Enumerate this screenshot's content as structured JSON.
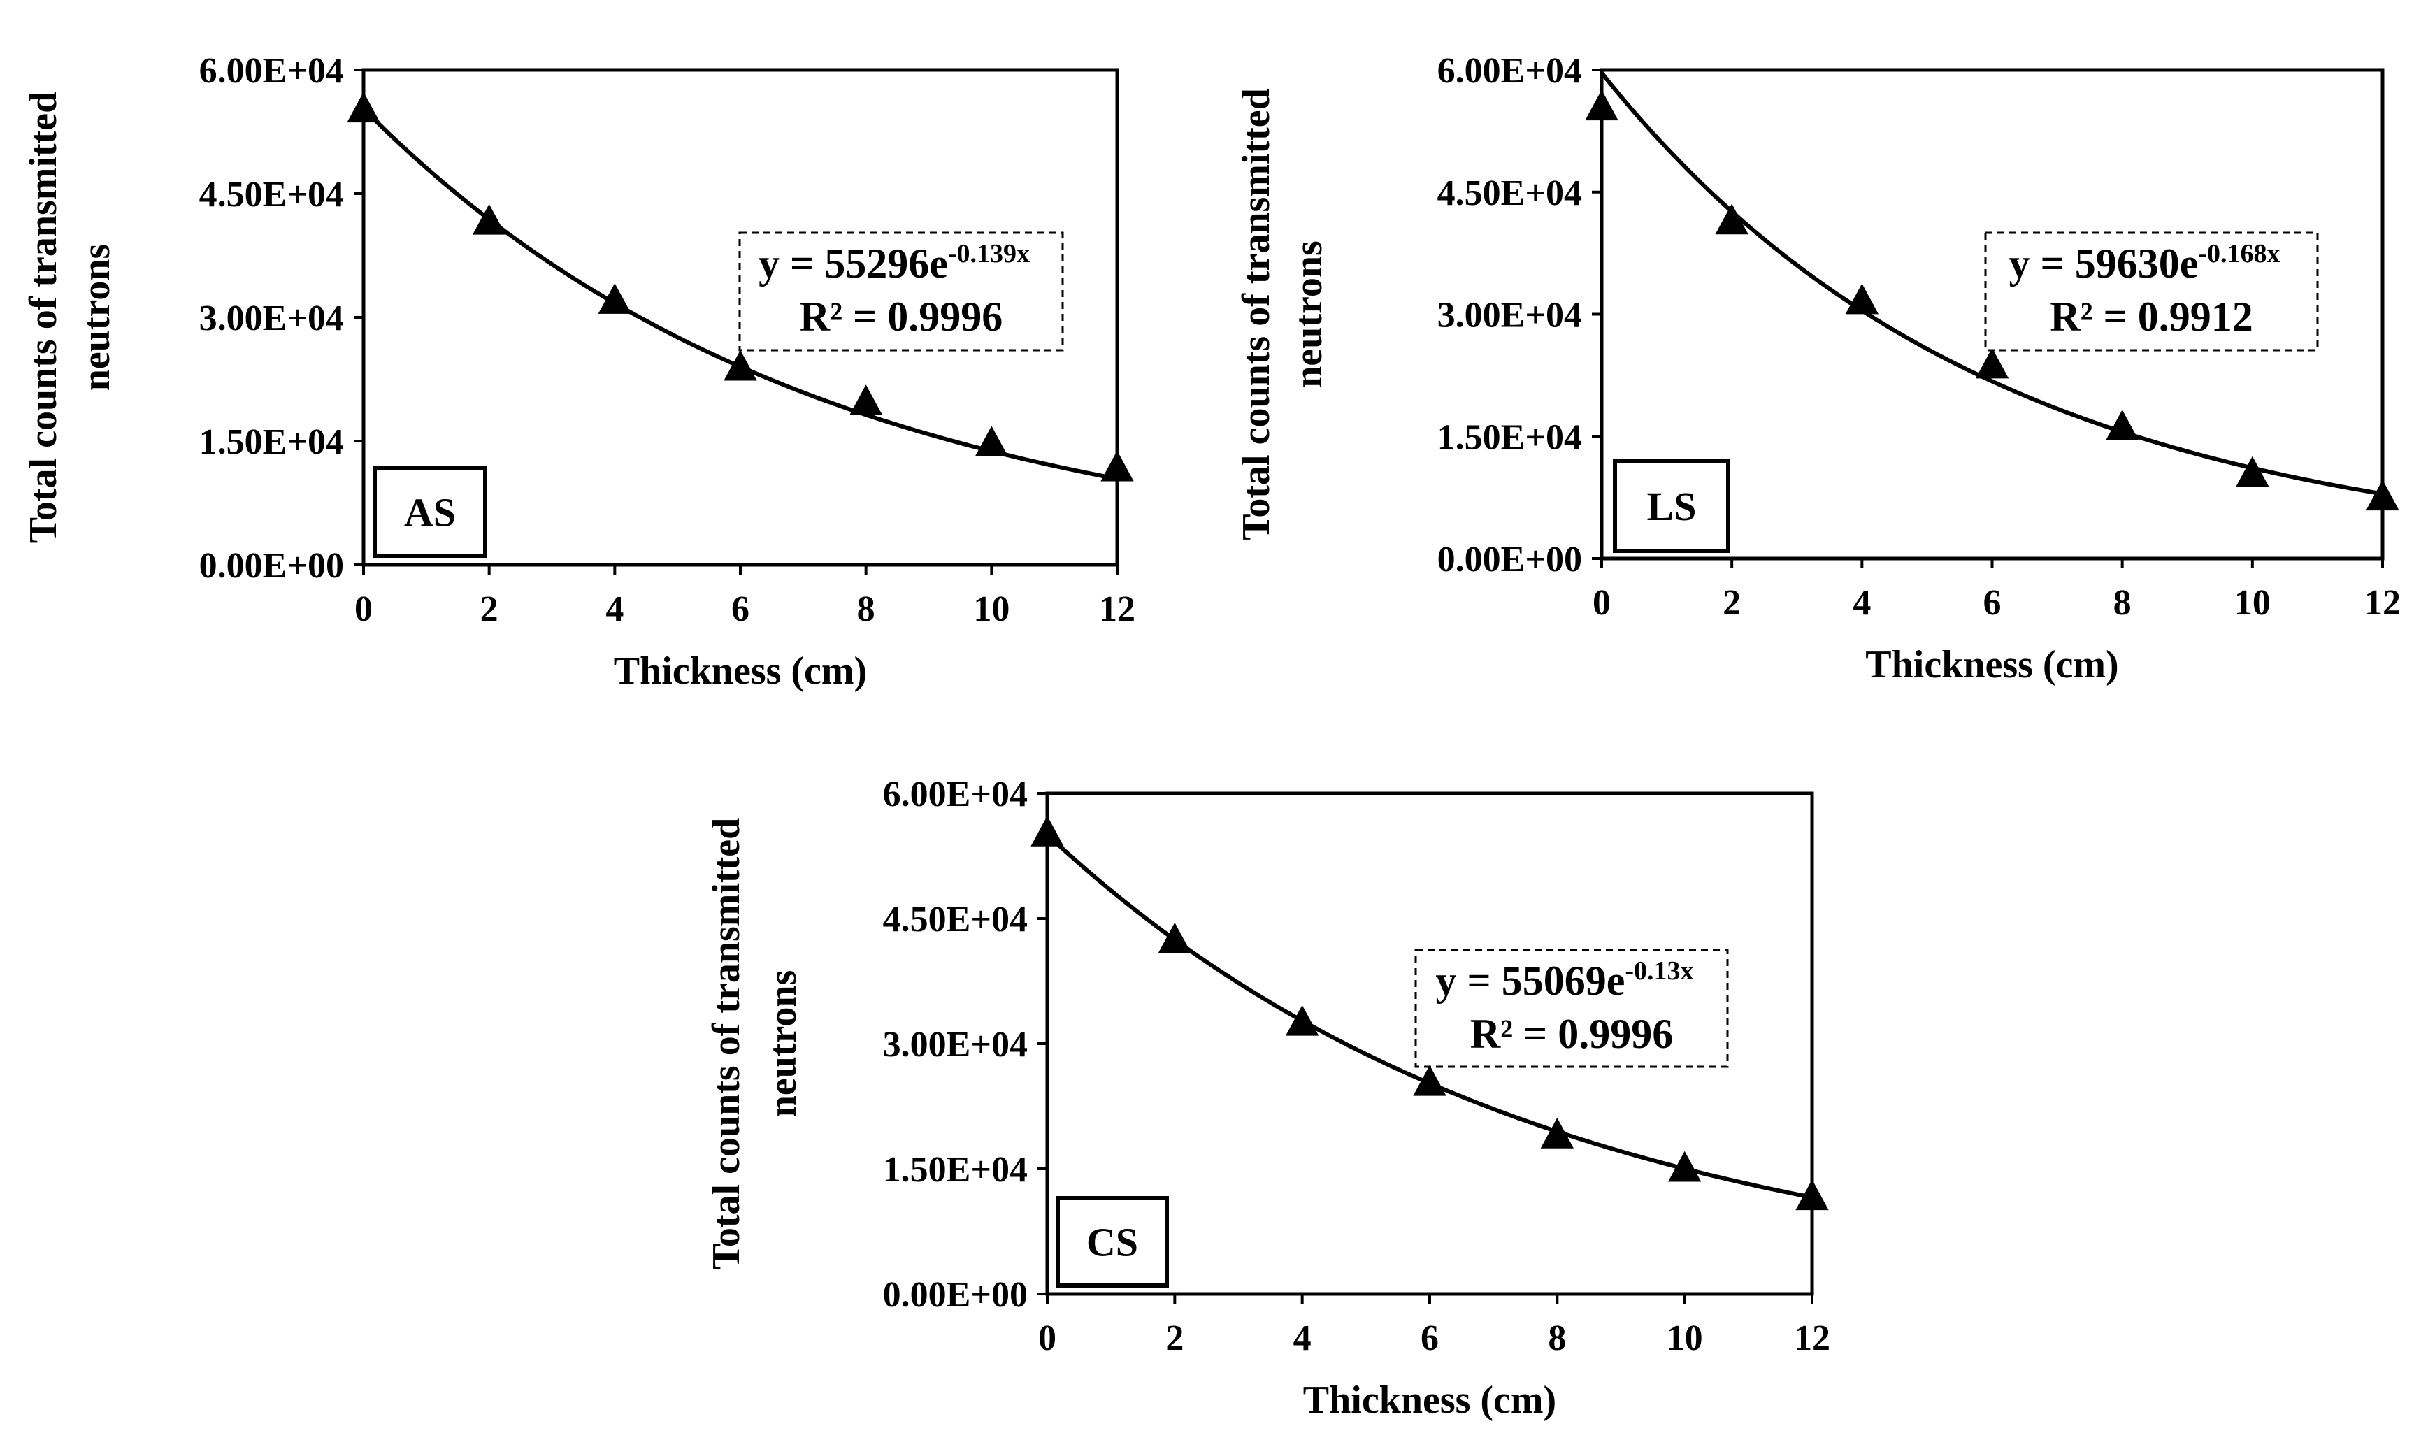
{
  "chart_data": [
    {
      "type": "scatter",
      "title": "",
      "tag": "AS",
      "xlabel": "Thickness (cm)",
      "ylabel_lines": [
        "Total counts of transmitted",
        "neutrons"
      ],
      "x": [
        0,
        2,
        4,
        6,
        8,
        10,
        12
      ],
      "y": [
        55300,
        41700,
        32100,
        24000,
        19800,
        14800,
        11800
      ],
      "xlim": [
        0,
        12
      ],
      "ylim": [
        0,
        60000
      ],
      "xticks": [
        "0",
        "2",
        "4",
        "6",
        "8",
        "10",
        "12"
      ],
      "yticks": [
        "0.00E+00",
        "1.50E+04",
        "3.00E+04",
        "4.50E+04",
        "6.00E+04"
      ],
      "fit": {
        "a": 55296,
        "b": -0.139
      },
      "equation": {
        "prefix": "y = 55296e",
        "exponent": "-0.139x",
        "r2": "R² = 0.9996"
      },
      "marker": "triangle"
    },
    {
      "type": "scatter",
      "title": "",
      "tag": "LS",
      "xlabel": "Thickness (cm)",
      "ylabel_lines": [
        "Total counts of transmitted",
        "neutrons"
      ],
      "x": [
        0,
        2,
        4,
        6,
        8,
        10,
        12
      ],
      "y": [
        55500,
        41500,
        31700,
        23800,
        16200,
        10500,
        7600
      ],
      "xlim": [
        0,
        12
      ],
      "ylim": [
        0,
        60000
      ],
      "xticks": [
        "0",
        "2",
        "4",
        "6",
        "8",
        "10",
        "12"
      ],
      "yticks": [
        "0.00E+00",
        "1.50E+04",
        "3.00E+04",
        "4.50E+04",
        "6.00E+04"
      ],
      "fit": {
        "a": 59630,
        "b": -0.168
      },
      "equation": {
        "prefix": "y = 59630e",
        "exponent": "-0.168x",
        "r2": "R² = 0.9912"
      },
      "marker": "triangle"
    },
    {
      "type": "scatter",
      "title": "",
      "tag": "CS",
      "xlabel": "Thickness (cm)",
      "ylabel_lines": [
        "Total counts of transmitted",
        "neutrons"
      ],
      "x": [
        0,
        2,
        4,
        6,
        8,
        10,
        12
      ],
      "y": [
        55300,
        42500,
        32600,
        25400,
        19100,
        15100,
        11700
      ],
      "xlim": [
        0,
        12
      ],
      "ylim": [
        0,
        60000
      ],
      "xticks": [
        "0",
        "2",
        "4",
        "6",
        "8",
        "10",
        "12"
      ],
      "yticks": [
        "0.00E+00",
        "1.50E+04",
        "3.00E+04",
        "4.50E+04",
        "6.00E+04"
      ],
      "fit": {
        "a": 55069,
        "b": -0.13
      },
      "equation": {
        "prefix": "y = 55069e",
        "exponent": "-0.13x",
        "r2": "R² = 0.9996"
      },
      "marker": "triangle"
    }
  ]
}
